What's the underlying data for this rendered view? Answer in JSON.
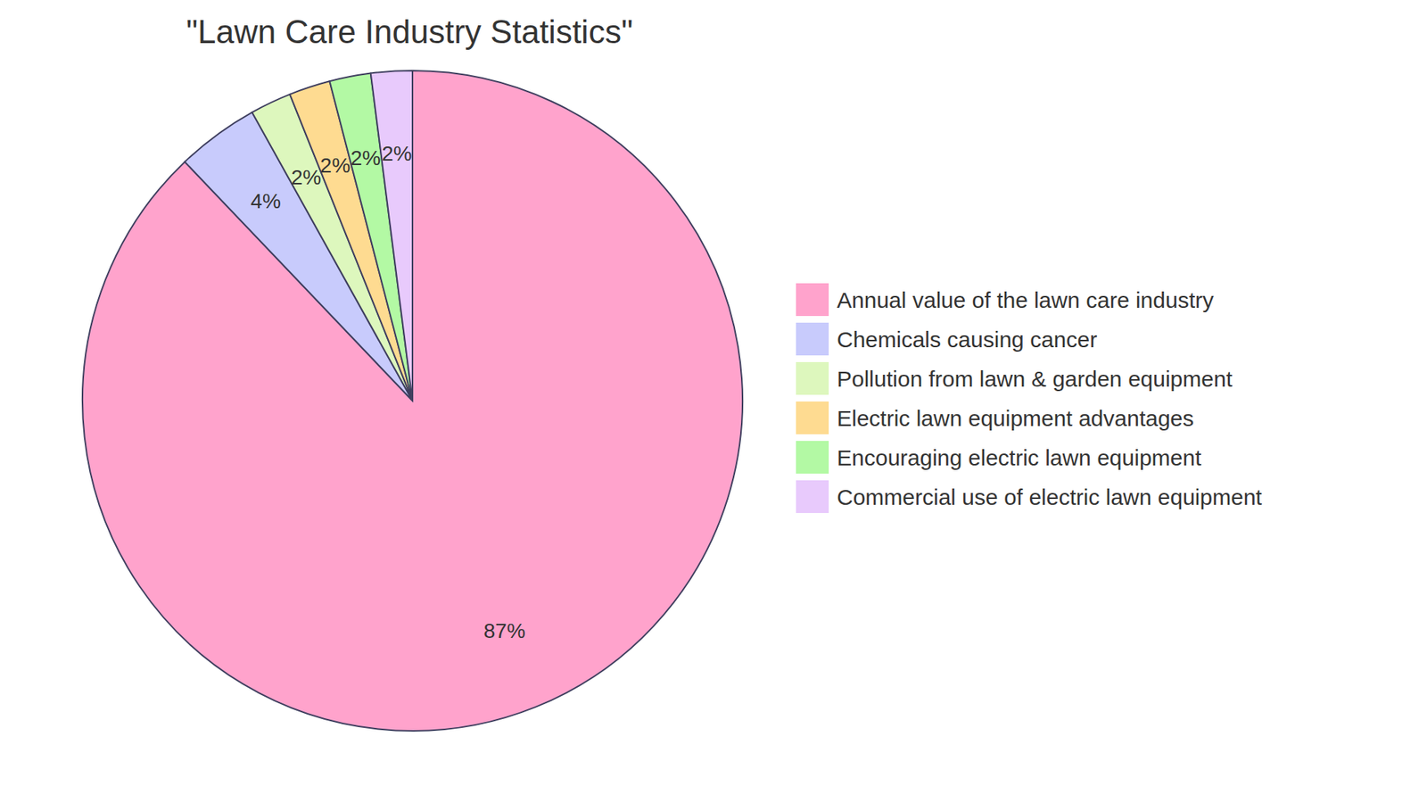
{
  "chart_data": {
    "type": "pie",
    "title": "\"Lawn Care Industry Statistics\"",
    "categories": [
      "Annual value of the lawn care industry",
      "Chemicals causing cancer",
      "Pollution from lawn & garden equipment",
      "Electric lawn equipment advantages",
      "Encouraging electric lawn equipment",
      "Commercial use of electric lawn equipment"
    ],
    "values": [
      87,
      4,
      2,
      2,
      2,
      2
    ],
    "value_labels": [
      "87%",
      "4%",
      "2%",
      "2%",
      "2%",
      "2%"
    ],
    "colors": [
      "#ffa3cc",
      "#c8cbfc",
      "#ddf7bd",
      "#fedb91",
      "#b3f9a4",
      "#e8cafc"
    ],
    "data_labels": true,
    "legend": "right"
  }
}
